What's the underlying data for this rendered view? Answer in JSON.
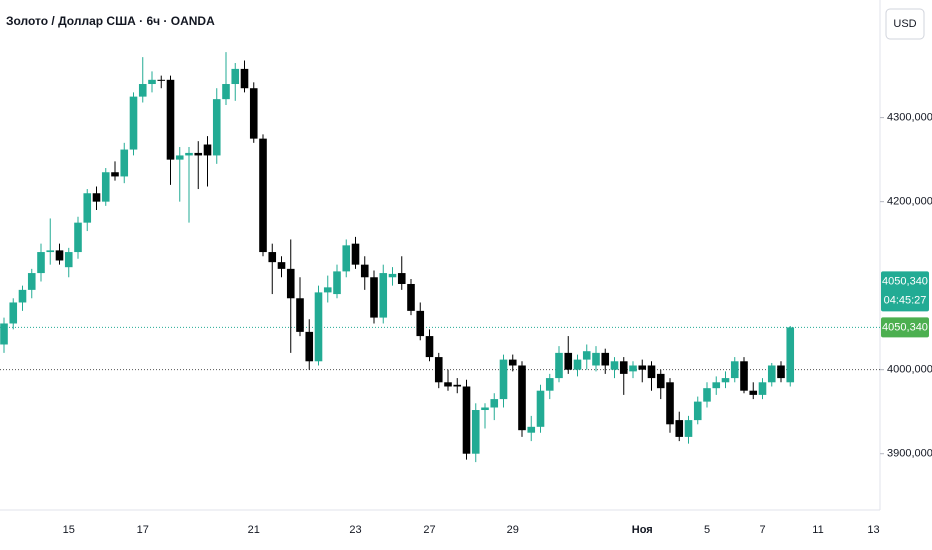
{
  "chart_data": {
    "type": "candlestick",
    "title": "Золото / Доллар США · 6ч · OANDA",
    "currency": "USD",
    "categories": [
      null,
      null,
      null,
      null,
      null,
      null,
      null,
      "15",
      null,
      null,
      null,
      null,
      null,
      null,
      null,
      "17",
      null,
      null,
      null,
      null,
      null,
      null,
      null,
      null,
      null,
      null,
      null,
      "21",
      null,
      null,
      null,
      null,
      null,
      null,
      null,
      null,
      null,
      null,
      "23",
      null,
      null,
      null,
      null,
      null,
      null,
      null,
      "27",
      null,
      null,
      null,
      null,
      null,
      null,
      null,
      null,
      "29",
      null,
      null,
      null,
      null,
      null,
      null,
      null,
      null,
      null,
      null,
      null,
      null,
      null,
      "Ноя",
      null,
      null,
      null,
      null,
      null,
      null,
      "5",
      null,
      null,
      null,
      null,
      null,
      "7",
      null,
      null,
      null,
      null,
      null,
      "11",
      null,
      null,
      null,
      null,
      null,
      "13"
    ],
    "open": [
      4030,
      4055,
      4080,
      4095,
      4115,
      4140,
      4142,
      4122,
      4140,
      4175,
      4210,
      4200,
      4235,
      4230,
      4262,
      4325,
      4340,
      4345,
      4345,
      4250,
      4255,
      4258,
      4268,
      4255,
      4322,
      4340,
      4358,
      4335,
      4275,
      4140,
      4128,
      4120,
      4085,
      4045,
      4010,
      4092,
      4090,
      4117,
      4150,
      4125,
      4110,
      4062,
      4110,
      4115,
      4102,
      4070,
      4040,
      4015,
      3985,
      3982,
      3980,
      3900,
      3952,
      3955,
      3965,
      4012,
      4005,
      3925,
      3932,
      3975,
      3990,
      4020,
      4000,
      4012,
      4005,
      4020,
      4000,
      4010,
      3998,
      4005,
      4005,
      3995,
      3985,
      3940,
      3920,
      3940,
      3962,
      3978,
      3985,
      3990,
      4010,
      3975,
      3970,
      3985,
      4005,
      3985,
      null,
      null,
      null,
      null,
      null,
      null,
      null,
      null,
      null
    ],
    "high": [
      4062,
      4085,
      4100,
      4120,
      4150,
      4180,
      4150,
      4145,
      4182,
      4215,
      4218,
      4240,
      4248,
      4270,
      4330,
      4372,
      4355,
      4350,
      4350,
      4265,
      4265,
      4272,
      4278,
      4335,
      4378,
      4365,
      4368,
      4342,
      4280,
      4150,
      4135,
      4155,
      4110,
      4060,
      4100,
      4112,
      4125,
      4155,
      4158,
      4135,
      4118,
      4125,
      4122,
      4135,
      4108,
      4080,
      4048,
      4020,
      4000,
      3990,
      3988,
      3960,
      3960,
      3972,
      4018,
      4018,
      4010,
      3945,
      3982,
      3995,
      4028,
      4040,
      4018,
      4030,
      4028,
      4025,
      4015,
      4015,
      4010,
      4012,
      4010,
      4000,
      3990,
      3950,
      3945,
      3968,
      3985,
      3992,
      3998,
      4015,
      4015,
      3985,
      3990,
      4008,
      4010,
      4052,
      null,
      null,
      null,
      null,
      null,
      null,
      null,
      null,
      null
    ],
    "low": [
      4020,
      4048,
      4070,
      4085,
      4105,
      4125,
      4125,
      4110,
      4132,
      4165,
      4190,
      4195,
      4225,
      4222,
      4255,
      4318,
      4330,
      4335,
      4220,
      4200,
      4175,
      4215,
      4218,
      4245,
      4315,
      4320,
      4330,
      4270,
      4135,
      4090,
      4110,
      4020,
      4040,
      4000,
      4005,
      4080,
      4085,
      4110,
      4120,
      4095,
      4055,
      4055,
      4100,
      4095,
      4065,
      4035,
      4010,
      3978,
      3975,
      3972,
      3893,
      3890,
      3930,
      3940,
      3955,
      3998,
      3920,
      3915,
      3925,
      3965,
      3985,
      3995,
      3992,
      4000,
      3998,
      3995,
      3990,
      3970,
      3990,
      3985,
      3975,
      3965,
      3925,
      3915,
      3912,
      3935,
      3955,
      3970,
      3978,
      3985,
      3972,
      3965,
      3965,
      3980,
      3985,
      3980,
      null,
      null,
      null,
      null,
      null,
      null,
      null,
      null,
      null
    ],
    "close": [
      4055,
      4080,
      4095,
      4115,
      4140,
      4142,
      4130,
      4140,
      4175,
      4210,
      4200,
      4235,
      4230,
      4262,
      4325,
      4340,
      4345,
      4344,
      4250,
      4255,
      4258,
      4255,
      4255,
      4322,
      4340,
      4358,
      4335,
      4275,
      4140,
      4128,
      4120,
      4085,
      4045,
      4010,
      4092,
      4098,
      4117,
      4148,
      4125,
      4110,
      4062,
      4115,
      4114,
      4102,
      4070,
      4040,
      4015,
      3985,
      3980,
      3980,
      3900,
      3952,
      3955,
      3965,
      4012,
      4005,
      3928,
      3932,
      3975,
      3990,
      4020,
      4000,
      4012,
      4022,
      4020,
      4005,
      4010,
      3995,
      4005,
      4000,
      3990,
      3978,
      3935,
      3920,
      3940,
      3962,
      3978,
      3985,
      3990,
      4010,
      3975,
      3970,
      3985,
      4005,
      3990,
      4050.34,
      null,
      null,
      null,
      null,
      null,
      null,
      null,
      null,
      null
    ],
    "up_color": "#22ab94",
    "down_color": "#000000",
    "ylim": [
      3833,
      4440
    ],
    "yticks": [
      {
        "value": 3900,
        "label": "3900,000"
      },
      {
        "value": 4000,
        "label": "4000,000"
      },
      {
        "value": 4200,
        "label": "4200,000"
      },
      {
        "value": 4300,
        "label": "4300,000"
      }
    ],
    "last_price": {
      "value": 4050.34,
      "label": "4050,340"
    },
    "countdown": "04:45:27",
    "reference_line": 4000
  }
}
